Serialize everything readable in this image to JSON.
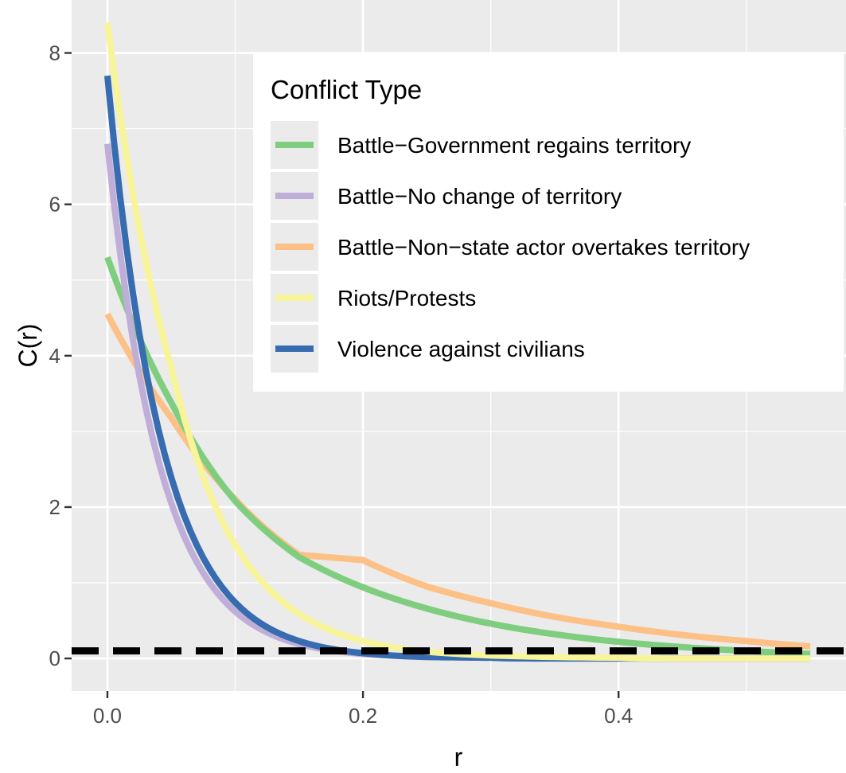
{
  "chart_data": {
    "type": "line",
    "xlabel": "r",
    "ylabel": "C(r)",
    "xlim": [
      -0.028,
      0.578
    ],
    "ylim": [
      -0.43,
      8.7
    ],
    "x_ticks": [
      0.0,
      0.2,
      0.4
    ],
    "x_tick_labels": [
      "0.0",
      "0.2",
      "0.4"
    ],
    "y_ticks": [
      0,
      2,
      4,
      6,
      8
    ],
    "y_tick_labels": [
      "0",
      "2",
      "4",
      "6",
      "8"
    ],
    "grid": true,
    "legend": {
      "title": "Conflict Type",
      "position": "top-right"
    },
    "reference_line": {
      "y": 0.1,
      "style": "dashed",
      "color": "#000000"
    },
    "x": [
      0.0,
      0.05,
      0.1,
      0.15,
      0.2,
      0.25,
      0.3,
      0.35,
      0.4,
      0.45,
      0.5,
      0.55
    ],
    "series": [
      {
        "name": "Battle−Government regains territory",
        "color": "#7fcd7f",
        "values": [
          5.3,
          3.38,
          2.08,
          1.34,
          0.94,
          0.66,
          0.46,
          0.32,
          0.22,
          0.15,
          0.1,
          0.06
        ]
      },
      {
        "name": "Battle−No change of territory",
        "color": "#bfaed8",
        "values": [
          6.8,
          2.05,
          0.62,
          0.19,
          0.06,
          0.02,
          0.01,
          0.0,
          0.0,
          0.0,
          0.0,
          0.0
        ]
      },
      {
        "name": "Battle−Non−state actor overtakes territory",
        "color": "#fdc086",
        "values": [
          4.55,
          3.18,
          2.1,
          1.37,
          1.3,
          0.95,
          0.73,
          0.55,
          0.42,
          0.31,
          0.23,
          0.16
        ]
      },
      {
        "name": "Riots/Protests",
        "color": "#f8f49a",
        "values": [
          8.4,
          3.84,
          1.5,
          0.59,
          0.23,
          0.09,
          0.04,
          0.02,
          0.01,
          0.0,
          0.0,
          0.0
        ]
      },
      {
        "name": "Violence against civilians",
        "color": "#386cb0",
        "values": [
          7.7,
          2.39,
          0.74,
          0.23,
          0.07,
          0.02,
          0.01,
          0.0,
          0.0,
          0.0,
          0.0,
          0.0
        ]
      }
    ]
  }
}
